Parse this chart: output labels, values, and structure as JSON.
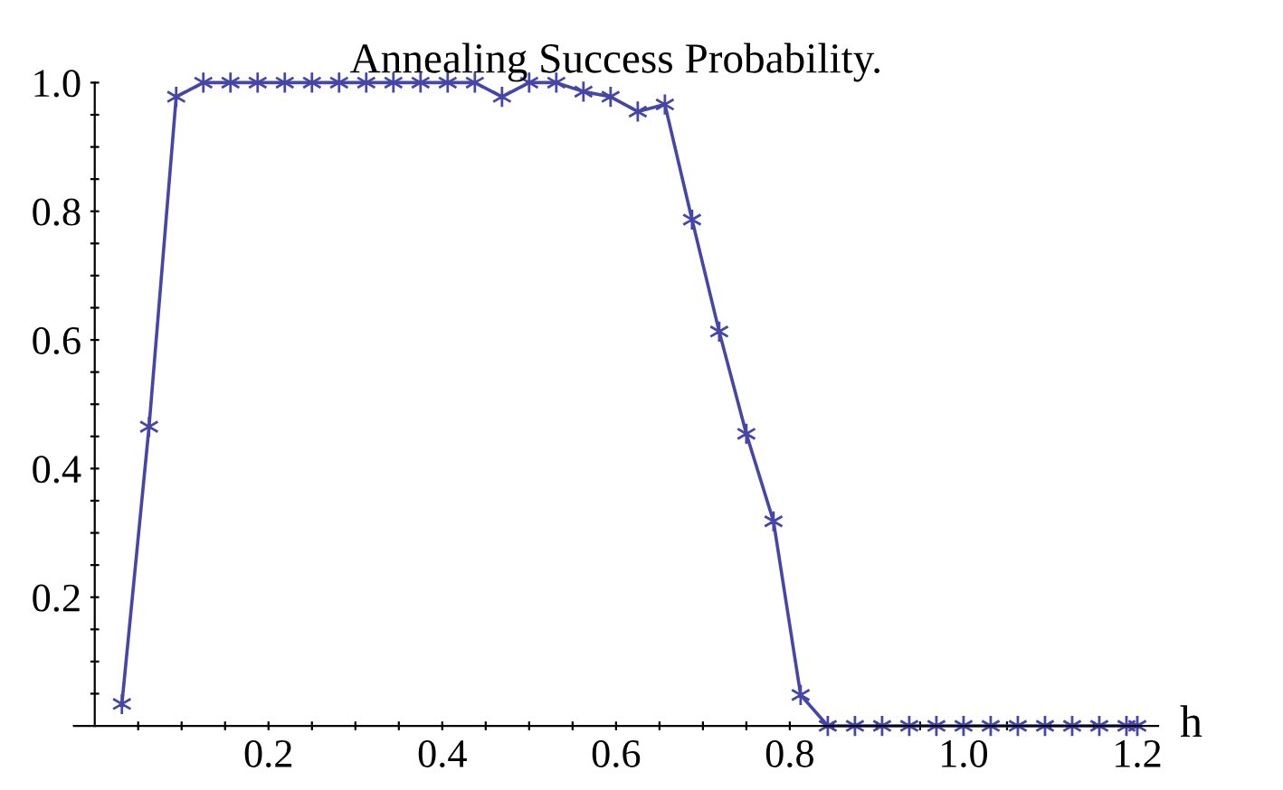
{
  "chart_data": {
    "type": "line",
    "title": "Annealing Success Probability.",
    "xlabel": "h",
    "x": [
      0.03125,
      0.0625,
      0.09375,
      0.125,
      0.15625,
      0.1875,
      0.21875,
      0.25,
      0.28125,
      0.3125,
      0.34375,
      0.375,
      0.40625,
      0.4375,
      0.46875,
      0.5,
      0.53125,
      0.5625,
      0.59375,
      0.625,
      0.65625,
      0.6875,
      0.71875,
      0.75,
      0.78125,
      0.8125,
      0.84375,
      0.875,
      0.90625,
      0.9375,
      0.96875,
      1.0,
      1.03125,
      1.0625,
      1.09375,
      1.125,
      1.15625,
      1.1875,
      1.2
    ],
    "series": [
      {
        "color": "#4646a8",
        "values": [
          0.034,
          0.465,
          0.978,
          1.0,
          1.0,
          1.0,
          1.0,
          1.0,
          1.0,
          1.0,
          1.0,
          1.0,
          1.0,
          1.0,
          0.978,
          1.0,
          1.0,
          0.986,
          0.978,
          0.955,
          0.966,
          0.787,
          0.613,
          0.454,
          0.318,
          0.048,
          0,
          0,
          0,
          0,
          0,
          0,
          0,
          0,
          0,
          0,
          0,
          0,
          0
        ]
      }
    ],
    "marker": "cross",
    "line_style": "solid",
    "grid": false,
    "legend": false,
    "xlim": [
      -0.024,
      1.224
    ],
    "ylim": [
      0,
      1.0
    ],
    "xticks": [
      {
        "value": 0.05,
        "label": null
      },
      {
        "value": 0.1,
        "label": null
      },
      {
        "value": 0.15,
        "label": null
      },
      {
        "value": 0.2,
        "label": "0.2"
      },
      {
        "value": 0.25,
        "label": null
      },
      {
        "value": 0.3,
        "label": null
      },
      {
        "value": 0.35,
        "label": null
      },
      {
        "value": 0.4,
        "label": "0.4"
      },
      {
        "value": 0.45,
        "label": null
      },
      {
        "value": 0.5,
        "label": null
      },
      {
        "value": 0.55,
        "label": null
      },
      {
        "value": 0.6,
        "label": "0.6"
      },
      {
        "value": 0.65,
        "label": null
      },
      {
        "value": 0.7,
        "label": null
      },
      {
        "value": 0.75,
        "label": null
      },
      {
        "value": 0.8,
        "label": "0.8"
      },
      {
        "value": 0.85,
        "label": null
      },
      {
        "value": 0.9,
        "label": null
      },
      {
        "value": 0.95,
        "label": null
      },
      {
        "value": 1.0,
        "label": "1.0"
      },
      {
        "value": 1.05,
        "label": null
      },
      {
        "value": 1.1,
        "label": null
      },
      {
        "value": 1.15,
        "label": null
      },
      {
        "value": 1.2,
        "label": "1.2"
      }
    ],
    "yticks": [
      {
        "value": 0.05,
        "label": null
      },
      {
        "value": 0.1,
        "label": null
      },
      {
        "value": 0.15,
        "label": null
      },
      {
        "value": 0.2,
        "label": "0.2"
      },
      {
        "value": 0.25,
        "label": null
      },
      {
        "value": 0.3,
        "label": null
      },
      {
        "value": 0.35,
        "label": null
      },
      {
        "value": 0.4,
        "label": "0.4"
      },
      {
        "value": 0.45,
        "label": null
      },
      {
        "value": 0.5,
        "label": null
      },
      {
        "value": 0.55,
        "label": null
      },
      {
        "value": 0.6,
        "label": "0.6"
      },
      {
        "value": 0.65,
        "label": null
      },
      {
        "value": 0.7,
        "label": null
      },
      {
        "value": 0.75,
        "label": null
      },
      {
        "value": 0.8,
        "label": "0.8"
      },
      {
        "value": 0.85,
        "label": null
      },
      {
        "value": 0.9,
        "label": null
      },
      {
        "value": 0.95,
        "label": null
      },
      {
        "value": 1.0,
        "label": "1.0"
      }
    ]
  }
}
